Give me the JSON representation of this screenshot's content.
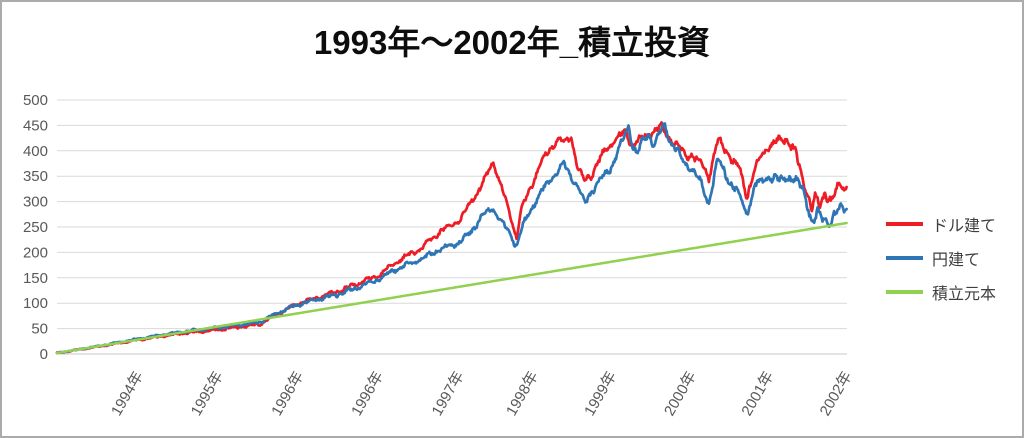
{
  "title": "1993年〜2002年_積立投資",
  "colors": {
    "grid": "#D9D9D9",
    "axis": "#C8C8C8",
    "tick_label": "#595959",
    "legend_text": "#3F3F3F",
    "title": "#0D0D0D",
    "frame_border": "#ABABAB",
    "background": "#FFFFFF"
  },
  "chart_data": {
    "type": "line",
    "title": "1993年〜2002年_積立投資",
    "x_unit": "month_index_from_1993-01",
    "x_range": [
      0,
      114.3
    ],
    "ylim": [
      0,
      500
    ],
    "y_ticks": [
      0,
      50,
      100,
      150,
      200,
      250,
      300,
      350,
      400,
      450,
      500
    ],
    "x_ticks": [
      {
        "label": "1994年",
        "pos": 0.103
      },
      {
        "label": "1995年",
        "pos": 0.204
      },
      {
        "label": "1996年",
        "pos": 0.306
      },
      {
        "label": "1996年",
        "pos": 0.407
      },
      {
        "label": "1997年",
        "pos": 0.509
      },
      {
        "label": "1998年",
        "pos": 0.603
      },
      {
        "label": "1999年",
        "pos": 0.702
      },
      {
        "label": "2000年",
        "pos": 0.803
      },
      {
        "label": "2001年",
        "pos": 0.901
      },
      {
        "label": "2002年",
        "pos": 1.0
      }
    ],
    "grid": true,
    "legend_position": "right",
    "series": [
      {
        "key": "dollar",
        "name": "ドル建て",
        "color": "#EE1C25",
        "points": [
          [
            0,
            2
          ],
          [
            6.2,
            15
          ],
          [
            11.8,
            28
          ],
          [
            17.6,
            40
          ],
          [
            23.4,
            48
          ],
          [
            26.3,
            53
          ],
          [
            29.2,
            58
          ],
          [
            32.1,
            80
          ],
          [
            35,
            100
          ],
          [
            37.9,
            112
          ],
          [
            40.8,
            124
          ],
          [
            43.7,
            140
          ],
          [
            46.6,
            155
          ],
          [
            49.5,
            185
          ],
          [
            52.4,
            205
          ],
          [
            55.3,
            240
          ],
          [
            58.2,
            262
          ],
          [
            59.9,
            300
          ],
          [
            61.4,
            330
          ],
          [
            63.1,
            378
          ],
          [
            64.3,
            330
          ],
          [
            65.4,
            280
          ],
          [
            66.5,
            230
          ],
          [
            67.2,
            285
          ],
          [
            68.6,
            330
          ],
          [
            70.1,
            378
          ],
          [
            71.2,
            400
          ],
          [
            72.5,
            425
          ],
          [
            73.3,
            415
          ],
          [
            74.4,
            427
          ],
          [
            75.4,
            364
          ],
          [
            76.3,
            340
          ],
          [
            77.3,
            352
          ],
          [
            78.8,
            390
          ],
          [
            80.2,
            415
          ],
          [
            81.4,
            430
          ],
          [
            82.4,
            435
          ],
          [
            83.1,
            410
          ],
          [
            84.3,
            422
          ],
          [
            85.3,
            430
          ],
          [
            86.3,
            440
          ],
          [
            87.5,
            445
          ],
          [
            88.7,
            425
          ],
          [
            89.7,
            412
          ],
          [
            90.8,
            391
          ],
          [
            91.8,
            392
          ],
          [
            93.2,
            374
          ],
          [
            94.3,
            348
          ],
          [
            95.6,
            421
          ],
          [
            97.1,
            395
          ],
          [
            98.8,
            362
          ],
          [
            99.8,
            309
          ],
          [
            101,
            368
          ],
          [
            103,
            411
          ],
          [
            104.5,
            418
          ],
          [
            105.6,
            423
          ],
          [
            106.4,
            408
          ],
          [
            107,
            390
          ],
          [
            107.5,
            360
          ],
          [
            108.5,
            322
          ],
          [
            109.2,
            286
          ],
          [
            109.7,
            310
          ],
          [
            110.4,
            290
          ],
          [
            111.1,
            318
          ],
          [
            112.1,
            300
          ],
          [
            113.3,
            335
          ],
          [
            114.3,
            328
          ]
        ]
      },
      {
        "key": "yen",
        "name": "円建て",
        "color": "#2E75B6",
        "points": [
          [
            0,
            2
          ],
          [
            6.2,
            16
          ],
          [
            11.8,
            30
          ],
          [
            17.6,
            43
          ],
          [
            23.4,
            52
          ],
          [
            26.3,
            57
          ],
          [
            29.2,
            62
          ],
          [
            32.1,
            82
          ],
          [
            35,
            98
          ],
          [
            37.9,
            108
          ],
          [
            40.8,
            118
          ],
          [
            43.7,
            132
          ],
          [
            46.6,
            148
          ],
          [
            49.5,
            170
          ],
          [
            52.4,
            185
          ],
          [
            55.3,
            205
          ],
          [
            58.2,
            220
          ],
          [
            59.9,
            240
          ],
          [
            61.4,
            270
          ],
          [
            63.1,
            288
          ],
          [
            64.3,
            260
          ],
          [
            65.4,
            240
          ],
          [
            66.5,
            212
          ],
          [
            67.2,
            246
          ],
          [
            68.6,
            285
          ],
          [
            70.1,
            320
          ],
          [
            71.2,
            340
          ],
          [
            72.5,
            360
          ],
          [
            73.3,
            375
          ],
          [
            74.4,
            350
          ],
          [
            75.4,
            330
          ],
          [
            76.3,
            295
          ],
          [
            77.3,
            320
          ],
          [
            78.8,
            345
          ],
          [
            80.2,
            368
          ],
          [
            81.2,
            400
          ],
          [
            82.1,
            428
          ],
          [
            82.7,
            450
          ],
          [
            83.3,
            408
          ],
          [
            84,
            395
          ],
          [
            84.8,
            420
          ],
          [
            85.6,
            432
          ],
          [
            86.4,
            412
          ],
          [
            87.3,
            438
          ],
          [
            87.9,
            450
          ],
          [
            88.7,
            418
          ],
          [
            89.7,
            402
          ],
          [
            90.8,
            372
          ],
          [
            91.8,
            370
          ],
          [
            93.2,
            335
          ],
          [
            94.3,
            296
          ],
          [
            95.6,
            384
          ],
          [
            97.1,
            345
          ],
          [
            98.8,
            310
          ],
          [
            99.8,
            276
          ],
          [
            101,
            332
          ],
          [
            103,
            348
          ],
          [
            104.5,
            342
          ],
          [
            105.6,
            350
          ],
          [
            106.4,
            344
          ],
          [
            107.8,
            330
          ],
          [
            108.5,
            300
          ],
          [
            109.2,
            260
          ],
          [
            109.5,
            253
          ],
          [
            110,
            280
          ],
          [
            110.8,
            270
          ],
          [
            111.9,
            256
          ],
          [
            113.1,
            285
          ],
          [
            114.3,
            296
          ]
        ]
      },
      {
        "key": "principal",
        "name": "積立元本",
        "color": "#92D050",
        "points": [
          [
            0,
            2
          ],
          [
            114.3,
            258
          ]
        ]
      }
    ]
  }
}
